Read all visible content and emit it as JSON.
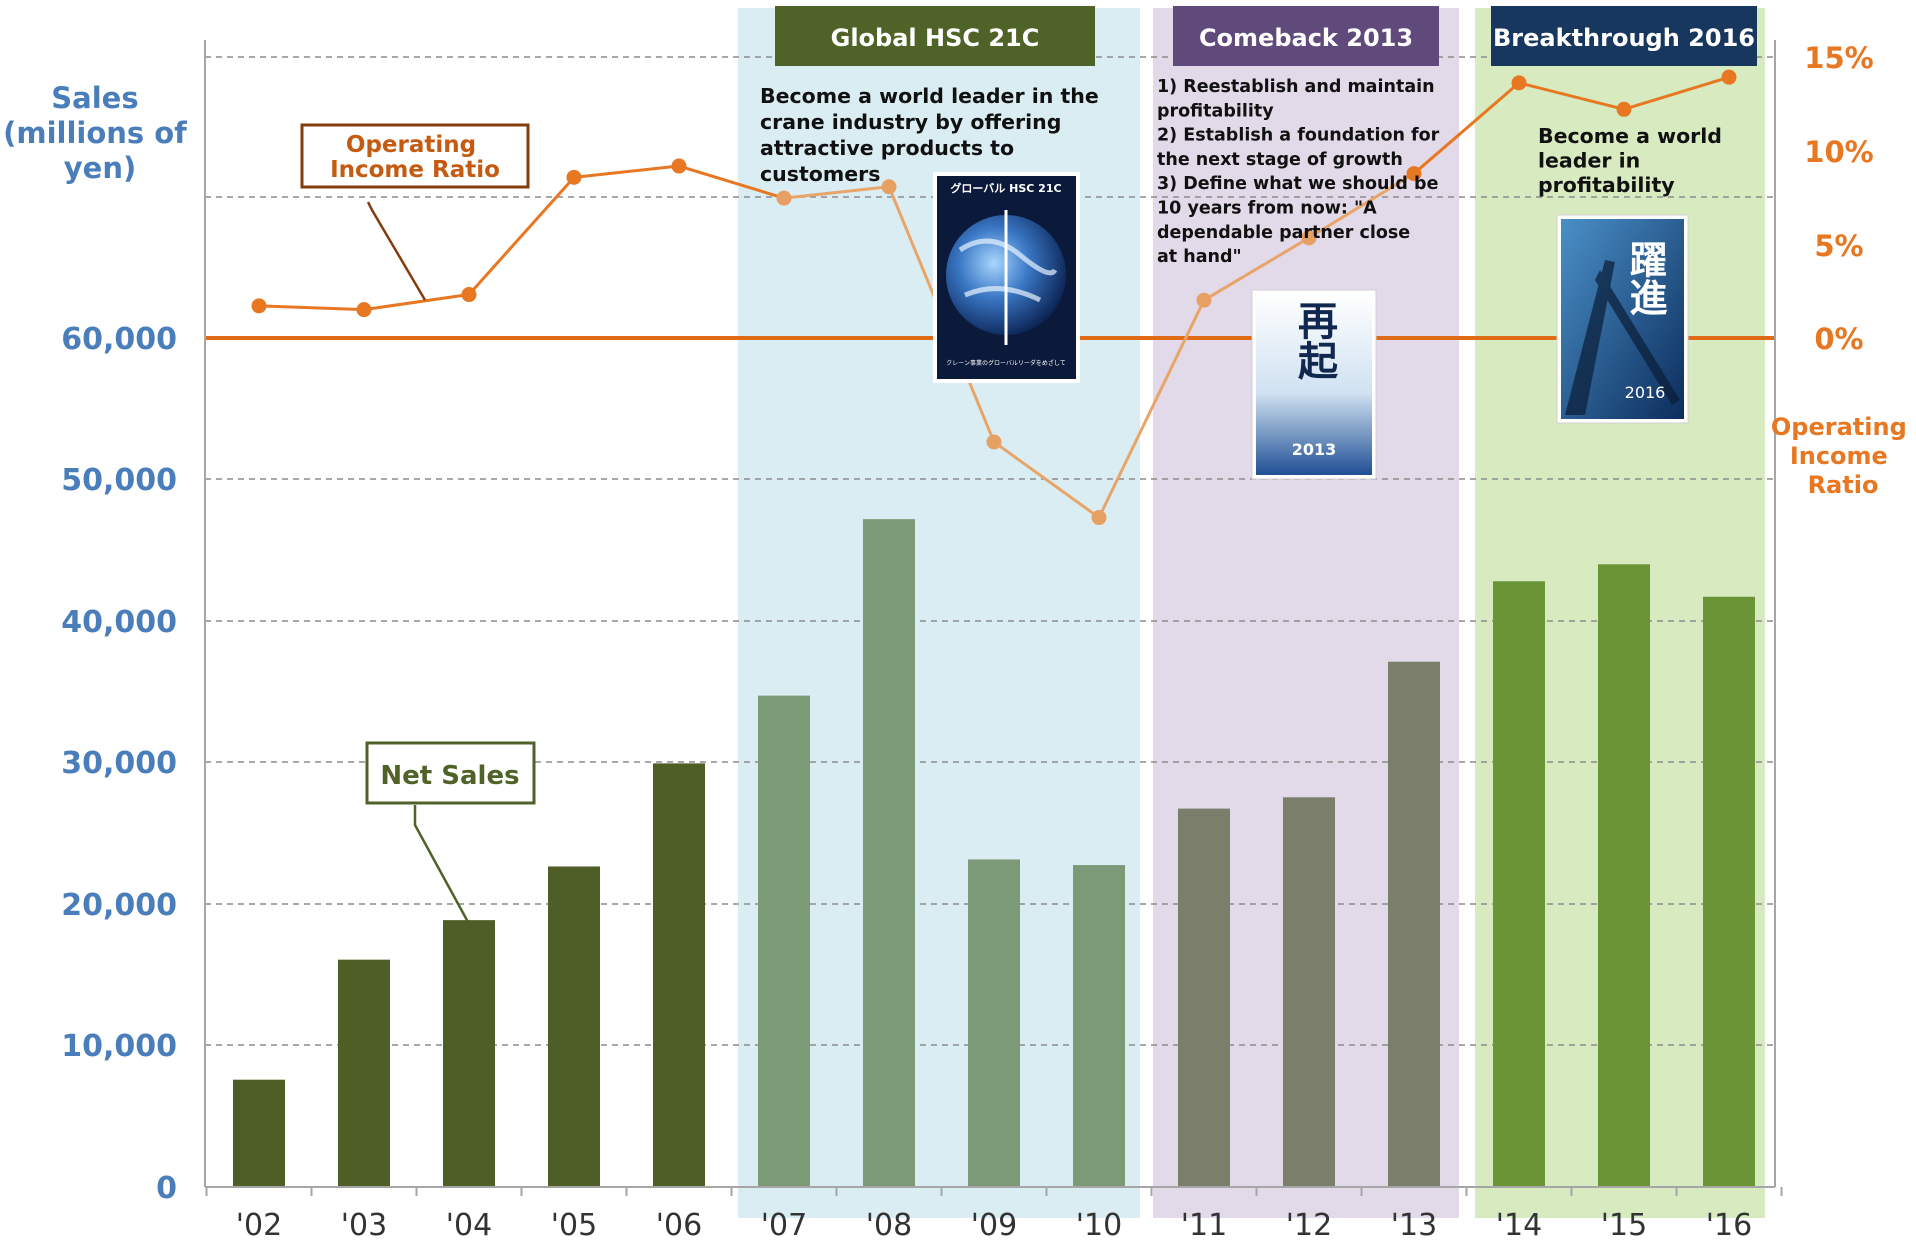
{
  "chart_data": {
    "type": "bar+line",
    "ylabel_left": [
      "Sales",
      "(millions of",
      "yen)"
    ],
    "ylabel_right": [
      "Operating",
      "Income",
      "Ratio"
    ],
    "ylim_left": [
      0,
      80000
    ],
    "ylim_right": [
      -40,
      15
    ],
    "left_ticks": [
      "0",
      "10,000",
      "20,000",
      "30,000",
      "40,000",
      "50,000",
      "60,000"
    ],
    "right_ticks": [
      "0%",
      "5%",
      "10%",
      "15%"
    ],
    "categories": [
      "'02",
      "'03",
      "'04",
      "'05",
      "'06",
      "'07",
      "'08",
      "'09",
      "'10",
      "'11",
      "'12",
      "'13",
      "'14",
      "'15",
      "'16"
    ],
    "series": [
      {
        "name": "Net Sales",
        "type": "bar",
        "values": [
          7600,
          16100,
          18900,
          22700,
          30000,
          34800,
          47300,
          23200,
          22800,
          26800,
          27600,
          37200,
          42900,
          44100,
          41800
        ]
      },
      {
        "name": "Operating Income Ratio",
        "type": "line",
        "values": [
          1.7,
          1.5,
          2.3,
          8.5,
          9.1,
          7.4,
          8.0,
          -5.5,
          -9.5,
          2.0,
          5.3,
          8.7,
          13.5,
          12.1,
          13.8
        ]
      }
    ],
    "bar_colors": [
      "#4e5e26",
      "#4e5e26",
      "#4e5e26",
      "#4e5e26",
      "#4e5e26",
      "#7d9a78",
      "#7d9a78",
      "#7d9a78",
      "#7d9a78",
      "#7c7e6c",
      "#7c7e6c",
      "#7c7e6c",
      "#6a9436",
      "#6a9436",
      "#6a9436"
    ],
    "line_color": "#e87722",
    "zero_line_color": "#e06b16",
    "phases": [
      {
        "title": "Global HSC 21C",
        "title_bg": "#4f6228",
        "band_color": "#daedf3",
        "description": [
          "Become a world leader in the",
          "crane industry by offering",
          "attractive products to",
          "customers"
        ],
        "start_index": 5,
        "end_index": 8
      },
      {
        "title": "Comeback 2013",
        "title_bg": "#604a7b",
        "band_color": "#e2d9e9",
        "description": [
          "1) Reestablish and maintain",
          "    profitability",
          "2) Establish a foundation for",
          "    the next stage of growth",
          "3) Define what we should be",
          "    10 years from now: \"A",
          "    dependable partner close",
          "    at hand\""
        ],
        "start_index": 9,
        "end_index": 11
      },
      {
        "title": "Breakthrough 2016",
        "title_bg": "#17375e",
        "band_color": "#d7eac0",
        "description": [
          "Become a world",
          "leader in",
          "profitability"
        ],
        "start_index": 12,
        "end_index": 14
      }
    ],
    "callouts": {
      "operating_income_ratio": [
        "Operating",
        "Income Ratio"
      ],
      "net_sales": "Net Sales"
    },
    "grid": "dashed horizontal"
  },
  "images": {
    "poster_1": {
      "title": "グローバル HSC 21C",
      "caption": "クレーン事業のグローバルリーダをめざして"
    },
    "poster_2": {
      "main": "再起",
      "year": "2013"
    },
    "poster_3": {
      "main": "躍進",
      "year": "2016"
    }
  }
}
